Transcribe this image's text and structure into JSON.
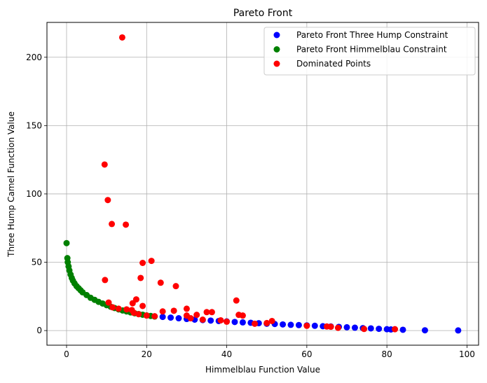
{
  "chart_data": {
    "type": "scatter",
    "title": "Pareto Front",
    "xlabel": "Himmelblau Function Value",
    "ylabel": "Three Hump Camel Function Value",
    "xlim": [
      -4.9,
      102.9
    ],
    "ylim": [
      -10.7,
      225.5
    ],
    "xticks": [
      0,
      20,
      40,
      60,
      80,
      100
    ],
    "yticks": [
      0,
      50,
      100,
      150,
      200
    ],
    "grid": true,
    "legend_position": "top-right",
    "series": [
      {
        "name": "Pareto Front Three Hump Constraint",
        "color": "#0000ff",
        "points": [
          [
            24,
            10
          ],
          [
            26,
            9.5
          ],
          [
            28,
            9
          ],
          [
            30,
            8.5
          ],
          [
            32,
            8
          ],
          [
            34,
            7.7
          ],
          [
            36,
            7.3
          ],
          [
            38,
            7
          ],
          [
            40,
            6.7
          ],
          [
            42,
            6.3
          ],
          [
            44,
            6
          ],
          [
            46,
            5.7
          ],
          [
            48,
            5.4
          ],
          [
            50,
            5
          ],
          [
            52,
            4.8
          ],
          [
            54,
            4.5
          ],
          [
            56,
            4.2
          ],
          [
            58,
            4
          ],
          [
            60,
            3.8
          ],
          [
            62,
            3.5
          ],
          [
            64,
            3.2
          ],
          [
            66,
            3
          ],
          [
            68,
            2.7
          ],
          [
            70,
            2.4
          ],
          [
            72,
            2.1
          ],
          [
            74,
            1.8
          ],
          [
            76,
            1.6
          ],
          [
            78,
            1.3
          ],
          [
            80,
            1
          ],
          [
            81,
            0.8
          ],
          [
            84,
            0.6
          ],
          [
            89.5,
            0.2
          ],
          [
            97.8,
            0.1
          ]
        ]
      },
      {
        "name": "Pareto Front Himmelblau Constraint",
        "color": "#008000",
        "points": [
          [
            0,
            64
          ],
          [
            0.2,
            53
          ],
          [
            0.3,
            50
          ],
          [
            0.5,
            47
          ],
          [
            0.7,
            44
          ],
          [
            1,
            41
          ],
          [
            1.3,
            38.5
          ],
          [
            1.6,
            36.5
          ],
          [
            2,
            34.5
          ],
          [
            2.5,
            32.5
          ],
          [
            3,
            31
          ],
          [
            3.5,
            29.5
          ],
          [
            4,
            28
          ],
          [
            5,
            26
          ],
          [
            6,
            24
          ],
          [
            7,
            22.5
          ],
          [
            8,
            21
          ],
          [
            9,
            19.8
          ],
          [
            10,
            18.6
          ],
          [
            11,
            17.5
          ],
          [
            12,
            16.5
          ],
          [
            13,
            15.5
          ],
          [
            14,
            14.7
          ],
          [
            15,
            14
          ],
          [
            16,
            13.3
          ],
          [
            17,
            12.7
          ],
          [
            18,
            12.1
          ],
          [
            19,
            11.6
          ],
          [
            20,
            11.1
          ],
          [
            21,
            10.7
          ],
          [
            22,
            10.3
          ]
        ]
      },
      {
        "name": "Dominated Points",
        "color": "#ff0000",
        "points": [
          [
            13.9,
            214.5
          ],
          [
            9.5,
            121.5
          ],
          [
            10.3,
            95.5
          ],
          [
            11.3,
            78
          ],
          [
            14.8,
            77.5
          ],
          [
            19,
            49.5
          ],
          [
            21.2,
            51
          ],
          [
            9.6,
            37
          ],
          [
            18.5,
            38.5
          ],
          [
            23.5,
            35
          ],
          [
            27.3,
            32.5
          ],
          [
            42.4,
            22
          ],
          [
            17.4,
            22.8
          ],
          [
            16.5,
            20
          ],
          [
            10.5,
            20.5
          ],
          [
            19,
            18
          ],
          [
            30,
            16
          ],
          [
            11.5,
            17
          ],
          [
            13,
            16
          ],
          [
            15,
            15.5
          ],
          [
            16.3,
            15
          ],
          [
            16.8,
            13
          ],
          [
            18,
            12
          ],
          [
            20,
            11
          ],
          [
            22,
            10.5
          ],
          [
            24,
            14
          ],
          [
            26.8,
            14.5
          ],
          [
            30,
            11
          ],
          [
            32.5,
            11.5
          ],
          [
            35,
            13.5
          ],
          [
            36.3,
            13.5
          ],
          [
            43,
            11.5
          ],
          [
            44,
            11
          ],
          [
            31,
            9
          ],
          [
            34,
            8
          ],
          [
            38.5,
            7.5
          ],
          [
            40,
            6.5
          ],
          [
            47,
            5
          ],
          [
            50,
            5.5
          ],
          [
            51.3,
            7
          ],
          [
            60,
            3.5
          ],
          [
            65,
            3
          ],
          [
            66,
            2.8
          ],
          [
            67.8,
            2
          ],
          [
            74.3,
            1.2
          ],
          [
            82,
            1
          ]
        ]
      }
    ]
  }
}
